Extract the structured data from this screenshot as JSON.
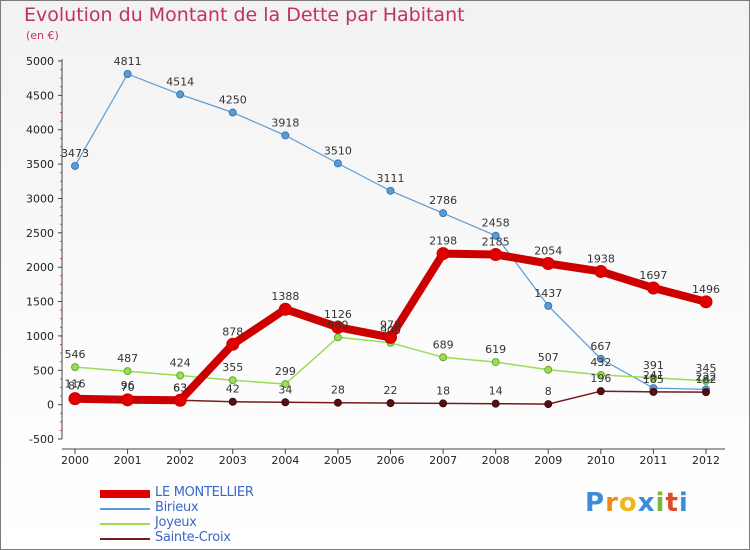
{
  "title": "Evolution du Montant de la Dette par Habitant",
  "unit": "(en €)",
  "logo": [
    "P",
    "r",
    "o",
    "x",
    "i",
    "t",
    "i"
  ],
  "logo_colors": [
    "#3c8dd8",
    "#f08a1c",
    "#f0b41c",
    "#3c8dd8",
    "#7ab83a",
    "#e04a2a",
    "#3c8dd8"
  ],
  "chart_data": {
    "type": "line",
    "title": "Evolution du Montant de la Dette par Habitant",
    "ylabel": "(en €)",
    "xlabel": "",
    "x": [
      "2000",
      "2001",
      "2002",
      "2003",
      "2004",
      "2005",
      "2006",
      "2007",
      "2008",
      "2009",
      "2010",
      "2011",
      "2012"
    ],
    "ylim": [
      -500,
      5000
    ],
    "yticks": [
      "-500",
      "0",
      "500",
      "1000",
      "1500",
      "2000",
      "2500",
      "3000",
      "3500",
      "4000",
      "4500",
      "5000"
    ],
    "grid": false,
    "legend_position": "bottom-left",
    "series": [
      {
        "name": "LE MONTELLIER",
        "color": "#e00000",
        "values": [
          87,
          70,
          63,
          878,
          1388,
          1126,
          978,
          2198,
          2185,
          2054,
          1938,
          1697,
          1496
        ],
        "labels": [
          "87",
          "70",
          "63",
          "878",
          "1388",
          "1126",
          "978",
          "2198",
          "2185",
          "2054",
          "1938",
          "1697",
          "1496"
        ]
      },
      {
        "name": "Birieux",
        "color": "#5b9bd5",
        "values": [
          3473,
          4811,
          4514,
          4250,
          3918,
          3510,
          3111,
          2786,
          2458,
          1437,
          667,
          241,
          222
        ],
        "labels": [
          "3473",
          "4811",
          "4514",
          "4250",
          "3918",
          "3510",
          "3111",
          "2786",
          "2458",
          "1437",
          "667",
          "241",
          "222"
        ]
      },
      {
        "name": "Joyeux",
        "color": "#99dd55",
        "values": [
          546,
          487,
          424,
          355,
          299,
          980,
          900,
          689,
          619,
          507,
          432,
          391,
          345
        ],
        "labels": [
          "546",
          "487",
          "424",
          "355",
          "299",
          "980",
          "900",
          "689",
          "619",
          "507",
          "432",
          "391",
          "345"
        ]
      },
      {
        "name": "Sainte-Croix",
        "color": "#7a1a1a",
        "values": [
          116,
          96,
          63,
          42,
          34,
          28,
          22,
          18,
          14,
          8,
          196,
          185,
          182
        ],
        "labels": [
          "116",
          "96",
          "63",
          "42",
          "34",
          "28",
          "22",
          "18",
          "14",
          "8",
          "196",
          "185",
          "182"
        ]
      }
    ]
  }
}
